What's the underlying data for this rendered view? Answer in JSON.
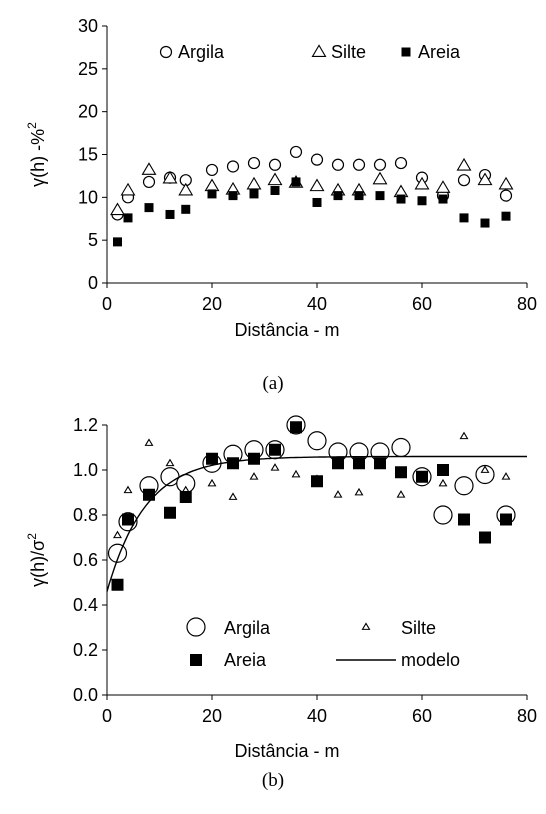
{
  "charts": [
    {
      "type": "scatter",
      "caption": "(a)",
      "xlabel": "Distância - m",
      "ylabel_main": "γ(h) -%",
      "ylabel_sup": "2",
      "xlim": [
        0,
        80
      ],
      "ylim": [
        0,
        30
      ],
      "xticks": [
        0,
        20,
        40,
        60,
        80
      ],
      "yticks": [
        0,
        5,
        10,
        15,
        20,
        25,
        30
      ],
      "tick_decimals": 0,
      "grid": false,
      "legend_position": "top",
      "series": [
        {
          "name": "Argila",
          "marker": "circle-open",
          "points": [
            [
              2,
              8
            ],
            [
              4,
              10
            ],
            [
              8,
              11.8
            ],
            [
              12,
              12.3
            ],
            [
              15,
              12
            ],
            [
              20,
              13.2
            ],
            [
              24,
              13.6
            ],
            [
              28,
              14
            ],
            [
              32,
              13.8
            ],
            [
              36,
              15.3
            ],
            [
              40,
              14.4
            ],
            [
              44,
              13.8
            ],
            [
              48,
              13.8
            ],
            [
              52,
              13.8
            ],
            [
              56,
              14
            ],
            [
              60,
              12.3
            ],
            [
              64,
              10.2
            ],
            [
              68,
              12
            ],
            [
              72,
              12.6
            ],
            [
              76,
              10.2
            ]
          ]
        },
        {
          "name": "Silte",
          "marker": "triangle-open",
          "points": [
            [
              2,
              8.5
            ],
            [
              4,
              10.8
            ],
            [
              8,
              13.2
            ],
            [
              12,
              12.2
            ],
            [
              15,
              10.8
            ],
            [
              20,
              11.3
            ],
            [
              24,
              10.9
            ],
            [
              28,
              11.5
            ],
            [
              32,
              12
            ],
            [
              36,
              11.7
            ],
            [
              40,
              11.3
            ],
            [
              44,
              10.8
            ],
            [
              48,
              10.8
            ],
            [
              52,
              12.1
            ],
            [
              56,
              10.6
            ],
            [
              60,
              11.5
            ],
            [
              64,
              11.1
            ],
            [
              68,
              13.7
            ],
            [
              72,
              12
            ],
            [
              76,
              11.5
            ]
          ]
        },
        {
          "name": "Areia",
          "marker": "square-filled",
          "points": [
            [
              2,
              4.8
            ],
            [
              4,
              7.6
            ],
            [
              8,
              8.8
            ],
            [
              12,
              8
            ],
            [
              15,
              8.6
            ],
            [
              20,
              10.4
            ],
            [
              24,
              10.2
            ],
            [
              28,
              10.4
            ],
            [
              32,
              10.8
            ],
            [
              36,
              11.8
            ],
            [
              40,
              9.4
            ],
            [
              44,
              10.2
            ],
            [
              48,
              10.2
            ],
            [
              52,
              10.2
            ],
            [
              56,
              9.8
            ],
            [
              60,
              9.6
            ],
            [
              64,
              9.8
            ],
            [
              68,
              7.6
            ],
            [
              72,
              7
            ],
            [
              76,
              7.8
            ]
          ]
        }
      ]
    },
    {
      "type": "scatter",
      "caption": "(b)",
      "xlabel": "Distância - m",
      "ylabel_main": "γ(h)/σ",
      "ylabel_sup": "2",
      "xlim": [
        0,
        80
      ],
      "ylim": [
        0,
        1.2
      ],
      "xticks": [
        0,
        20,
        40,
        60,
        80
      ],
      "yticks": [
        0,
        0.2,
        0.4,
        0.6,
        0.8,
        1.0,
        1.2
      ],
      "tick_decimals": 1,
      "grid": false,
      "legend_position": "bottom-center",
      "series": [
        {
          "name": "Argila",
          "marker": "circle-open-large",
          "points": [
            [
              2,
              0.63
            ],
            [
              4,
              0.77
            ],
            [
              8,
              0.93
            ],
            [
              12,
              0.97
            ],
            [
              15,
              0.94
            ],
            [
              20,
              1.03
            ],
            [
              24,
              1.07
            ],
            [
              28,
              1.09
            ],
            [
              32,
              1.09
            ],
            [
              36,
              1.2
            ],
            [
              40,
              1.13
            ],
            [
              44,
              1.08
            ],
            [
              48,
              1.08
            ],
            [
              52,
              1.08
            ],
            [
              56,
              1.1
            ],
            [
              60,
              0.97
            ],
            [
              64,
              0.8
            ],
            [
              68,
              0.93
            ],
            [
              72,
              0.98
            ],
            [
              76,
              0.8
            ]
          ]
        },
        {
          "name": "Silte",
          "marker": "triangle-open-small",
          "points": [
            [
              2,
              0.71
            ],
            [
              4,
              0.91
            ],
            [
              8,
              1.12
            ],
            [
              12,
              1.03
            ],
            [
              15,
              0.91
            ],
            [
              20,
              0.94
            ],
            [
              24,
              0.88
            ],
            [
              28,
              0.97
            ],
            [
              32,
              1.01
            ],
            [
              36,
              0.98
            ],
            [
              40,
              0.96
            ],
            [
              44,
              0.89
            ],
            [
              48,
              0.9
            ],
            [
              52,
              1.02
            ],
            [
              56,
              0.89
            ],
            [
              60,
              0.97
            ],
            [
              64,
              0.94
            ],
            [
              68,
              1.15
            ],
            [
              72,
              1.0
            ],
            [
              76,
              0.97
            ]
          ]
        },
        {
          "name": "Areia",
          "marker": "square-filled",
          "points": [
            [
              2,
              0.49
            ],
            [
              4,
              0.78
            ],
            [
              8,
              0.89
            ],
            [
              12,
              0.81
            ],
            [
              15,
              0.88
            ],
            [
              20,
              1.05
            ],
            [
              24,
              1.03
            ],
            [
              28,
              1.05
            ],
            [
              32,
              1.09
            ],
            [
              36,
              1.19
            ],
            [
              40,
              0.95
            ],
            [
              44,
              1.03
            ],
            [
              48,
              1.03
            ],
            [
              52,
              1.03
            ],
            [
              56,
              0.99
            ],
            [
              60,
              0.97
            ],
            [
              64,
              1.0
            ],
            [
              68,
              0.78
            ],
            [
              72,
              0.7
            ],
            [
              76,
              0.78
            ]
          ]
        },
        {
          "name": "modelo",
          "marker": "line",
          "model": {
            "nugget": 0.46,
            "sill": 1.06,
            "range": 22
          }
        }
      ]
    }
  ]
}
